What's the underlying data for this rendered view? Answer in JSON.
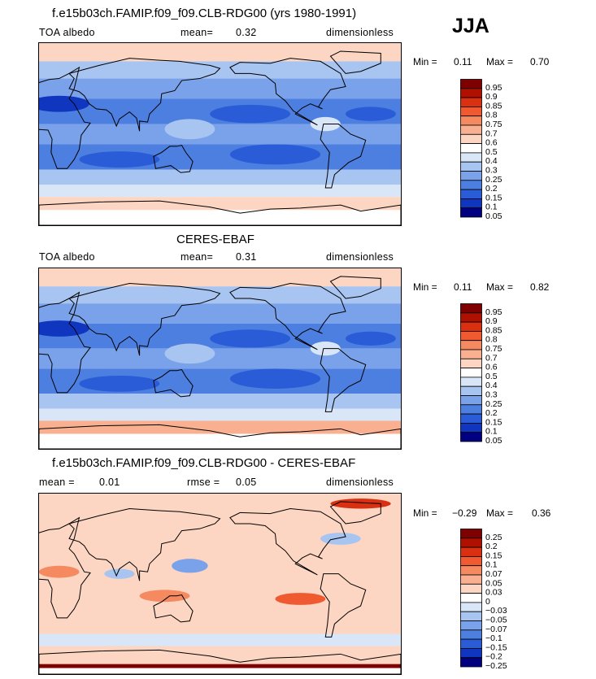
{
  "season": "JJA",
  "panels": [
    {
      "title": "f.e15b03ch.FAMIP.f09_f09.CLB-RDG00 (yrs 1980-1991)",
      "left_label": "TOA albedo",
      "mid_label": "mean=",
      "mid_value": "0.32",
      "right_label": "dimensionless",
      "min_label": "Min =",
      "min_value": "0.11",
      "max_label": "Max =",
      "max_value": "0.70",
      "colorbar_levels": [
        "0.95",
        "0.9",
        "0.85",
        "0.8",
        "0.75",
        "0.7",
        "0.6",
        "0.5",
        "0.4",
        "0.3",
        "0.25",
        "0.2",
        "0.15",
        "0.1",
        "0.05"
      ]
    },
    {
      "title": "CERES-EBAF",
      "left_label": "TOA albedo",
      "mid_label": "mean=",
      "mid_value": "0.31",
      "right_label": "dimensionless",
      "min_label": "Min =",
      "min_value": "0.11",
      "max_label": "Max =",
      "max_value": "0.82",
      "colorbar_levels": [
        "0.95",
        "0.9",
        "0.85",
        "0.8",
        "0.75",
        "0.7",
        "0.6",
        "0.5",
        "0.4",
        "0.3",
        "0.25",
        "0.2",
        "0.15",
        "0.1",
        "0.05"
      ]
    },
    {
      "title": "f.e15b03ch.FAMIP.f09_f09.CLB-RDG00 - CERES-EBAF",
      "left_label": "mean =",
      "left_value": "0.01",
      "mid_label": "rmse =",
      "mid_value": "0.05",
      "right_label": "dimensionless",
      "min_label": "Min =",
      "min_value": "−0.29",
      "max_label": "Max =",
      "max_value": "0.36",
      "colorbar_levels": [
        "0.25",
        "0.2",
        "0.15",
        "0.1",
        "0.07",
        "0.05",
        "0.03",
        "0",
        "−0.03",
        "−0.05",
        "−0.07",
        "−0.1",
        "−0.15",
        "−0.2",
        "−0.25"
      ]
    }
  ],
  "colors": {
    "abs_scale": [
      "#7f0000",
      "#b01000",
      "#d83010",
      "#ef5a30",
      "#f58a60",
      "#f9b090",
      "#fcd6c2",
      "#ffffff",
      "#d8e6f8",
      "#a8c4f0",
      "#7aa2ea",
      "#4d7fe0",
      "#2a5cd8",
      "#1036c0",
      "#000080"
    ],
    "diff_scale": [
      "#7f0000",
      "#b01000",
      "#d83010",
      "#ef5a30",
      "#f58a60",
      "#f9b090",
      "#fcd6c2",
      "#ffffff",
      "#d8e6f8",
      "#a8c4f0",
      "#7aa2ea",
      "#4d7fe0",
      "#2a5cd8",
      "#1036c0",
      "#000080"
    ]
  },
  "chart_data": [
    {
      "type": "heatmap",
      "title": "f.e15b03ch.FAMIP.f09_f09.CLB-RDG00 (yrs 1980-1991)",
      "variable": "TOA albedo",
      "units": "dimensionless",
      "mean": 0.32,
      "min": 0.11,
      "max": 0.7,
      "levels": [
        0.05,
        0.1,
        0.15,
        0.2,
        0.25,
        0.3,
        0.4,
        0.5,
        0.6,
        0.7,
        0.75,
        0.8,
        0.85,
        0.9,
        0.95
      ]
    },
    {
      "type": "heatmap",
      "title": "CERES-EBAF",
      "variable": "TOA albedo",
      "units": "dimensionless",
      "mean": 0.31,
      "min": 0.11,
      "max": 0.82,
      "levels": [
        0.05,
        0.1,
        0.15,
        0.2,
        0.25,
        0.3,
        0.4,
        0.5,
        0.6,
        0.7,
        0.75,
        0.8,
        0.85,
        0.9,
        0.95
      ]
    },
    {
      "type": "heatmap",
      "title": "f.e15b03ch.FAMIP.f09_f09.CLB-RDG00 - CERES-EBAF",
      "units": "dimensionless",
      "mean": 0.01,
      "rmse": 0.05,
      "min": -0.29,
      "max": 0.36,
      "levels": [
        -0.25,
        -0.2,
        -0.15,
        -0.1,
        -0.07,
        -0.05,
        -0.03,
        0,
        0.03,
        0.05,
        0.07,
        0.1,
        0.15,
        0.2,
        0.25
      ]
    }
  ]
}
